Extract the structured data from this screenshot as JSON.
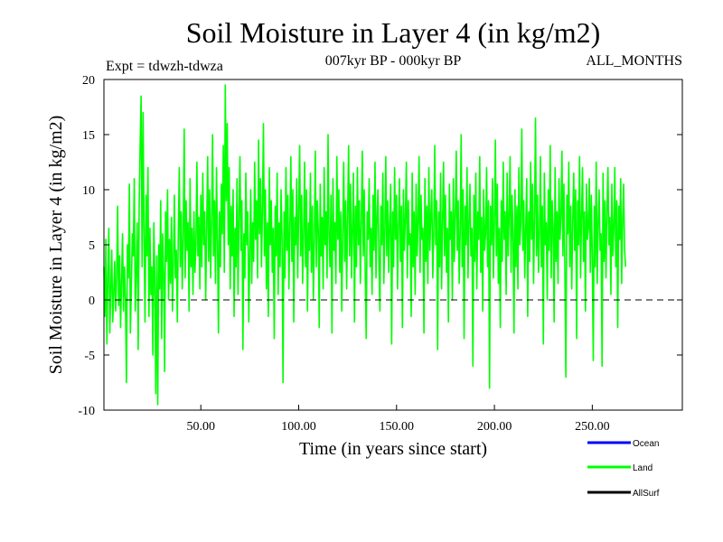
{
  "chart_data": {
    "type": "line",
    "title": "Soil Moisture in Layer 4 (in kg/m2)",
    "subtitle_left": "Expt = tdwzh-tdwza",
    "subtitle_center": "007kyr BP - 000kyr BP",
    "subtitle_right": "ALL_MONTHS",
    "xlabel": "Time (in years since start)",
    "ylabel": "Soil Moisture in Layer 4 (in kg/m2)",
    "xlim": [
      0.5,
      296
    ],
    "ylim": [
      -10,
      20
    ],
    "x_ticks": [
      50,
      100,
      150,
      200,
      250
    ],
    "x_tick_labels": [
      "50.00",
      "100.00",
      "150.00",
      "200.00",
      "250.00"
    ],
    "y_ticks": [
      -10,
      -5,
      0,
      5,
      10,
      15,
      20
    ],
    "y_tick_labels": [
      "-10",
      "-5",
      "0",
      "5",
      "10",
      "15",
      "20"
    ],
    "zero_line": true,
    "grid": false,
    "legend_position": "bottom-right",
    "series": [
      {
        "name": "Land",
        "color": "#00ff00",
        "x_start": 0.5,
        "x_step": 0.5,
        "values": [
          3.0,
          -1.5,
          5.5,
          -4.0,
          2.0,
          6.5,
          -3.0,
          1.0,
          4.5,
          -2.0,
          0.5,
          3.5,
          -1.0,
          2.0,
          8.5,
          -0.5,
          4.0,
          -2.5,
          1.5,
          6.0,
          -1.0,
          3.0,
          0.0,
          -7.5,
          5.0,
          2.0,
          10.5,
          -3.0,
          1.0,
          6.0,
          4.0,
          11.0,
          -1.0,
          2.5,
          7.0,
          -4.5,
          8.5,
          14.0,
          18.5,
          3.0,
          17.0,
          6.0,
          -2.0,
          9.5,
          4.0,
          12.0,
          -1.5,
          6.5,
          0.5,
          3.0,
          -5.0,
          7.0,
          2.0,
          -8.5,
          4.0,
          -9.5,
          5.0,
          1.0,
          9.0,
          -3.5,
          6.0,
          2.5,
          -6.5,
          8.0,
          3.5,
          10.0,
          0.0,
          5.5,
          1.5,
          7.5,
          -1.0,
          3.5,
          9.5,
          2.0,
          4.5,
          -2.0,
          6.0,
          12.0,
          3.0,
          8.0,
          1.0,
          5.5,
          15.5,
          2.0,
          9.0,
          4.5,
          7.0,
          -1.0,
          11.0,
          3.0,
          6.5,
          0.5,
          8.0,
          2.5,
          5.0,
          12.5,
          4.0,
          7.5,
          1.0,
          9.5,
          3.0,
          11.5,
          5.0,
          8.0,
          0.0,
          6.5,
          13.0,
          3.5,
          10.0,
          2.0,
          7.0,
          15.0,
          4.0,
          9.0,
          1.5,
          12.0,
          5.5,
          -3.0,
          8.0,
          3.0,
          10.5,
          6.0,
          14.0,
          2.5,
          19.5,
          9.0,
          16.0,
          5.0,
          12.0,
          1.0,
          8.5,
          4.0,
          10.0,
          -1.5,
          6.5,
          3.0,
          11.0,
          0.5,
          7.5,
          13.0,
          4.5,
          9.0,
          -4.5,
          6.0,
          2.0,
          11.5,
          5.0,
          8.0,
          -2.0,
          4.0,
          10.0,
          1.5,
          7.0,
          3.5,
          12.5,
          5.5,
          9.0,
          2.0,
          14.5,
          6.0,
          11.0,
          3.0,
          8.5,
          16.0,
          4.0,
          10.0,
          1.0,
          7.0,
          -1.5,
          12.0,
          5.0,
          9.0,
          2.5,
          6.5,
          -3.5,
          8.5,
          4.0,
          11.5,
          0.5,
          7.0,
          3.0,
          10.0,
          5.5,
          -7.5,
          8.0,
          2.0,
          12.0,
          4.5,
          9.5,
          1.0,
          6.5,
          13.0,
          3.5,
          10.0,
          -2.0,
          7.5,
          5.0,
          11.0,
          2.0,
          8.0,
          14.0,
          4.0,
          9.5,
          1.5,
          6.0,
          12.5,
          3.0,
          10.0,
          -1.0,
          7.0,
          4.5,
          11.5,
          2.5,
          8.5,
          0.0,
          5.5,
          13.5,
          3.0,
          9.0,
          6.5,
          -2.5,
          10.5,
          4.0,
          7.5,
          1.0,
          12.0,
          5.0,
          8.0,
          2.0,
          15.0,
          6.0,
          3.0,
          9.5,
          -3.0,
          11.0,
          4.5,
          7.0,
          1.5,
          13.0,
          5.5,
          10.0,
          2.5,
          8.0,
          -1.0,
          6.0,
          12.5,
          3.5,
          9.0,
          1.0,
          7.5,
          14.0,
          4.0,
          10.5,
          2.0,
          6.5,
          11.5,
          -2.0,
          8.5,
          3.0,
          12.0,
          5.0,
          9.0,
          1.5,
          7.0,
          13.5,
          4.0,
          10.0,
          2.5,
          -3.5,
          8.0,
          5.5,
          11.0,
          3.0,
          6.5,
          0.5,
          9.5,
          4.5,
          12.5,
          2.0,
          7.5,
          10.0,
          3.5,
          -1.0,
          8.5,
          5.0,
          11.5,
          1.5,
          6.0,
          13.0,
          4.0,
          9.0,
          2.5,
          7.0,
          10.5,
          -4.0,
          8.0,
          3.0,
          12.0,
          5.5,
          9.5,
          1.0,
          6.5,
          11.0,
          3.5,
          8.5,
          -2.5,
          10.0,
          4.5,
          7.5,
          12.5,
          2.0,
          9.0,
          5.0,
          6.0,
          -1.5,
          11.5,
          3.0,
          8.0,
          0.5,
          10.5,
          4.0,
          7.0,
          13.0,
          2.5,
          9.5,
          5.5,
          6.5,
          -3.0,
          11.0,
          3.5,
          8.5,
          1.5,
          12.0,
          4.5,
          7.5,
          10.0,
          2.0,
          6.0,
          14.0,
          5.0,
          9.0,
          -4.5,
          8.0,
          3.0,
          11.5,
          1.0,
          7.0,
          12.5,
          4.0,
          9.5,
          2.5,
          6.5,
          -2.0,
          10.5,
          5.5,
          8.0,
          0.0,
          11.0,
          3.5,
          7.5,
          13.5,
          4.5,
          9.0,
          1.5,
          6.0,
          15.0,
          3.0,
          10.0,
          -3.5,
          8.5,
          5.0,
          12.0,
          2.0,
          7.0,
          10.5,
          4.0,
          6.5,
          -6.0,
          9.5,
          3.5,
          11.5,
          1.0,
          8.0,
          5.5,
          13.0,
          2.5,
          7.5,
          -1.0,
          10.0,
          4.5,
          6.0,
          12.0,
          3.0,
          9.0,
          -8.0,
          8.5,
          5.0,
          11.0,
          2.0,
          7.0,
          14.5,
          4.0,
          10.5,
          1.5,
          6.5,
          -2.5,
          9.0,
          3.5,
          12.5,
          5.5,
          8.0,
          0.5,
          11.5,
          4.0,
          7.5,
          13.0,
          2.5,
          9.5,
          6.0,
          -3.0,
          10.0,
          3.0,
          8.5,
          1.0,
          12.0,
          5.0,
          7.0,
          15.5,
          4.5,
          9.0,
          2.0,
          6.5,
          11.0,
          -1.5,
          8.0,
          3.5,
          12.5,
          5.5,
          10.5,
          1.5,
          7.5,
          16.5,
          4.0,
          9.5,
          2.5,
          6.0,
          13.0,
          3.0,
          8.5,
          -4.0,
          11.5,
          5.0,
          7.0,
          0.0,
          10.0,
          4.5,
          14.0,
          2.0,
          9.0,
          6.5,
          -2.0,
          12.0,
          3.5,
          8.0,
          1.5,
          11.0,
          5.5,
          7.5,
          13.5,
          4.0,
          10.5,
          2.5,
          -7.0,
          9.5,
          6.0,
          12.5,
          3.0,
          8.5,
          1.0,
          7.0,
          11.5,
          4.5,
          10.0,
          -3.5,
          9.0,
          5.0,
          13.0,
          2.0,
          7.5,
          12.0,
          3.5,
          8.0,
          -1.0,
          10.5,
          5.5,
          6.5,
          11.0,
          2.5,
          9.5,
          4.0,
          -5.5,
          8.5,
          3.0,
          12.5,
          1.5,
          7.0,
          10.0,
          4.5,
          6.0,
          -6.0,
          11.5,
          3.5,
          9.0,
          2.0,
          8.0,
          12.0,
          5.0,
          7.5,
          0.5,
          10.5,
          4.0,
          6.5,
          12.0,
          3.0,
          9.0,
          -2.5,
          8.5,
          5.5,
          11.0,
          1.5,
          7.0,
          10.5,
          4.5,
          3.0
        ]
      }
    ],
    "legend": [
      {
        "name": "Ocean",
        "color": "#0000ff"
      },
      {
        "name": "Land",
        "color": "#00ff00"
      },
      {
        "name": "AllSurf",
        "color": "#000000"
      }
    ]
  }
}
